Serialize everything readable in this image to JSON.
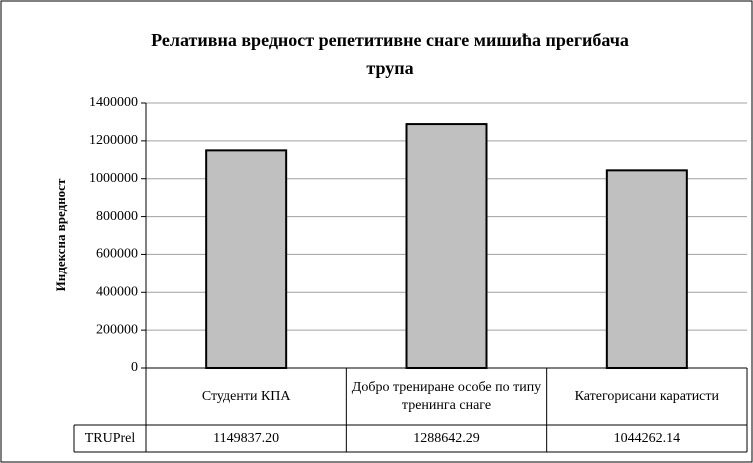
{
  "chart_data": {
    "type": "bar",
    "title": "Релативна вредност репетитивне снаге мишића прегибача трупа",
    "y_label": "Индексна вредност",
    "categories": [
      "Студенти КПА",
      "Добро трениране особе по типу тренинга снаге",
      "Категорисани каратисти"
    ],
    "series": [
      {
        "name": "TRUPrel",
        "color": "#c0c0c0",
        "values": [
          1149837.2,
          1288642.29,
          1044262.14
        ],
        "value_labels": [
          "1149837.20",
          "1288642.29",
          "1044262.14"
        ]
      }
    ],
    "ylim": [
      0,
      1400000
    ],
    "yticks": [
      0,
      200000,
      400000,
      600000,
      800000,
      1000000,
      1200000,
      1400000
    ],
    "grid": true
  }
}
